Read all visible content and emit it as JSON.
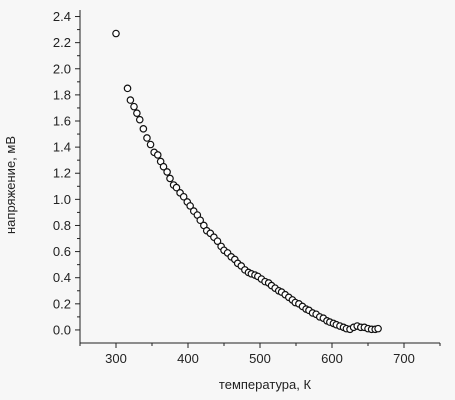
{
  "chart_data": {
    "type": "scatter",
    "title": "",
    "xlabel": "температура, К",
    "ylabel": "напряжение, мВ",
    "xlim": [
      250,
      750
    ],
    "ylim": [
      -0.1,
      2.45
    ],
    "x_ticks": [
      300,
      400,
      500,
      600,
      700
    ],
    "x_tick_labels": [
      "300",
      "400",
      "500",
      "600",
      "700"
    ],
    "y_ticks": [
      0.0,
      0.2,
      0.4,
      0.6,
      0.8,
      1.0,
      1.2,
      1.4,
      1.6,
      1.8,
      2.0,
      2.2,
      2.4
    ],
    "y_tick_labels": [
      "0.0",
      "0.2",
      "0.4",
      "0.6",
      "0.8",
      "1.0",
      "1.2",
      "1.4",
      "1.6",
      "1.8",
      "2.0",
      "2.2",
      "2.4"
    ],
    "grid": false,
    "legend": "none",
    "marker": "open-circle",
    "colors": {
      "marker_stroke": "#111111",
      "marker_fill": "#ffffff",
      "axis": "#222222",
      "background": "#f7f7f7"
    },
    "series": [
      {
        "x": [
          300,
          316,
          320,
          325,
          329,
          333,
          338,
          343,
          348,
          353,
          358,
          362,
          366,
          371,
          375,
          380,
          384,
          389,
          394,
          399,
          403,
          408,
          413,
          417,
          422,
          426,
          431,
          436,
          441,
          446,
          450,
          455,
          460,
          465,
          469,
          474,
          479,
          484,
          488,
          493,
          497,
          502,
          507,
          512,
          516,
          521,
          526,
          530,
          535,
          540,
          545,
          549,
          554,
          559,
          564,
          568,
          573,
          578,
          583,
          588,
          593,
          597,
          602,
          606,
          611,
          616,
          620,
          625,
          630,
          635,
          640,
          645,
          650,
          655,
          660,
          664
        ],
        "y": [
          2.27,
          1.85,
          1.76,
          1.71,
          1.66,
          1.61,
          1.54,
          1.47,
          1.42,
          1.36,
          1.34,
          1.29,
          1.25,
          1.21,
          1.16,
          1.11,
          1.09,
          1.05,
          1.02,
          0.98,
          0.95,
          0.91,
          0.88,
          0.84,
          0.8,
          0.76,
          0.74,
          0.71,
          0.68,
          0.64,
          0.61,
          0.59,
          0.56,
          0.54,
          0.51,
          0.49,
          0.46,
          0.44,
          0.43,
          0.42,
          0.41,
          0.39,
          0.37,
          0.36,
          0.34,
          0.32,
          0.3,
          0.29,
          0.27,
          0.25,
          0.23,
          0.21,
          0.2,
          0.18,
          0.16,
          0.15,
          0.13,
          0.12,
          0.1,
          0.09,
          0.07,
          0.06,
          0.05,
          0.04,
          0.03,
          0.02,
          0.01,
          0.005,
          0.02,
          0.03,
          0.02,
          0.02,
          0.01,
          0.005,
          0.005,
          0.01
        ]
      }
    ]
  }
}
